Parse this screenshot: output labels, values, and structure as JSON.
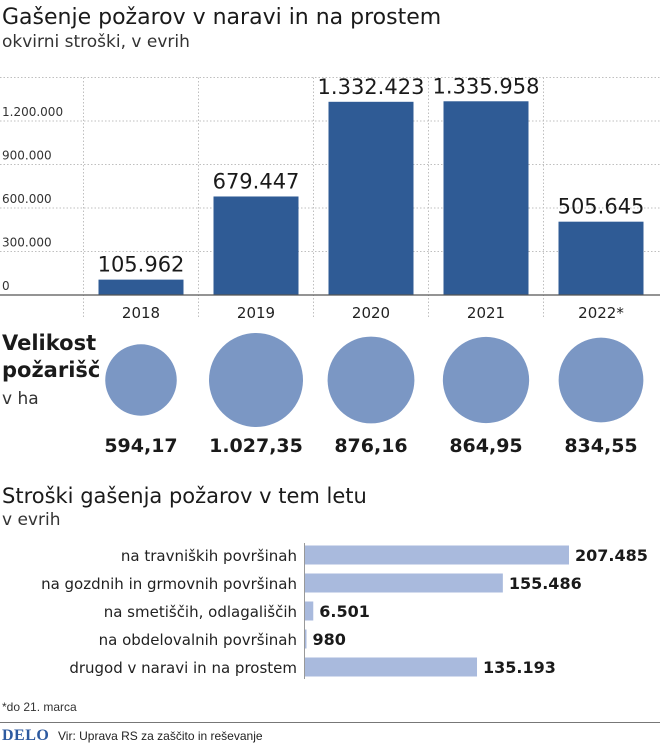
{
  "header": {
    "title": "Gašenje požarov v naravi in na prostem",
    "subtitle": "okvirni stroški, v evrih"
  },
  "sizes_section": {
    "title_line1": "Velikost",
    "title_line2": "požarišč",
    "unit": "v ha"
  },
  "breakdown_section": {
    "title": "Stroški gašenja požarov v tem letu",
    "unit": "v evrih"
  },
  "footnote": "*do 21. marca",
  "footer": {
    "logo": "DELO",
    "source": "Vir: Uprava RS za zaščito in reševanje"
  },
  "colors": {
    "bar": "#2f5b95",
    "circle": "#7b97c4",
    "hbar": "#a9badd",
    "grid": "#bfbfbf"
  },
  "chart_data": [
    {
      "type": "bar",
      "categories": [
        "2018",
        "2019",
        "2020",
        "2021",
        "2022*"
      ],
      "values": [
        105962,
        679447,
        1332423,
        1335958,
        505645
      ],
      "value_labels": [
        "105.962",
        "679.447",
        "1.332.423",
        "1.335.958",
        "505.645"
      ],
      "y_ticks": [
        0,
        300000,
        600000,
        900000,
        1200000
      ],
      "y_tick_labels": [
        "0",
        "300.000",
        "600.000",
        "900.000",
        "1.200.000"
      ],
      "ylim": [
        0,
        1500000
      ],
      "grid": true
    },
    {
      "type": "scatter",
      "categories": [
        "2018",
        "2019",
        "2020",
        "2021",
        "2022*"
      ],
      "values": [
        594.17,
        1027.35,
        876.16,
        864.95,
        834.55
      ],
      "value_labels": [
        "594,17",
        "1.027,35",
        "876,16",
        "864,95",
        "834,55"
      ]
    },
    {
      "type": "bar",
      "orientation": "horizontal",
      "categories": [
        "na travniških površinah",
        "na gozdnih in grmovnih površinah",
        "na smetiščih, odlagališčih",
        "na obdelovalnih površinah",
        "drugod v naravi in na prostem"
      ],
      "values": [
        207485,
        155486,
        6501,
        980,
        135193
      ],
      "value_labels": [
        "207.485",
        "155.486",
        "6.501",
        "980",
        "135.193"
      ]
    }
  ]
}
